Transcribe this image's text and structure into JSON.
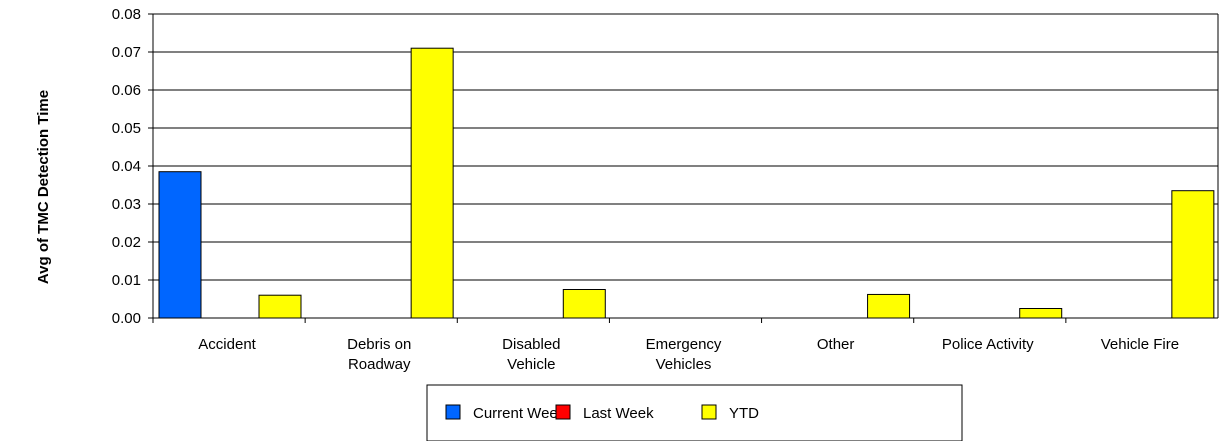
{
  "chart_data": {
    "type": "bar",
    "title": "",
    "xlabel": "",
    "ylabel": "Avg of TMC Detection Time",
    "ylim": [
      0,
      0.08
    ],
    "yticks": [
      0,
      0.01,
      0.02,
      0.03,
      0.04,
      0.05,
      0.06,
      0.07,
      0.08
    ],
    "ytick_labels": [
      "0.00",
      "0.01",
      "0.02",
      "0.03",
      "0.04",
      "0.05",
      "0.06",
      "0.07",
      "0.08"
    ],
    "grid": true,
    "legend_position": "bottom",
    "categories": [
      [
        "Accident"
      ],
      [
        "Debris on",
        "Roadway"
      ],
      [
        "Disabled",
        "Vehicle"
      ],
      [
        "Emergency",
        "Vehicles"
      ],
      [
        "Other"
      ],
      [
        "Police Activity"
      ],
      [
        "Vehicle Fire"
      ]
    ],
    "series": [
      {
        "name": "Current Week",
        "color": "#0066ff",
        "values": [
          0.0385,
          0,
          0,
          0,
          0,
          0,
          0
        ]
      },
      {
        "name": "Last Week",
        "color": "#ff0000",
        "values": [
          0,
          0,
          0,
          0,
          0,
          0,
          0
        ]
      },
      {
        "name": "YTD",
        "color": "#ffff00",
        "values": [
          0.006,
          0.071,
          0.0075,
          0,
          0.0062,
          0.0025,
          0.0335
        ]
      }
    ]
  }
}
